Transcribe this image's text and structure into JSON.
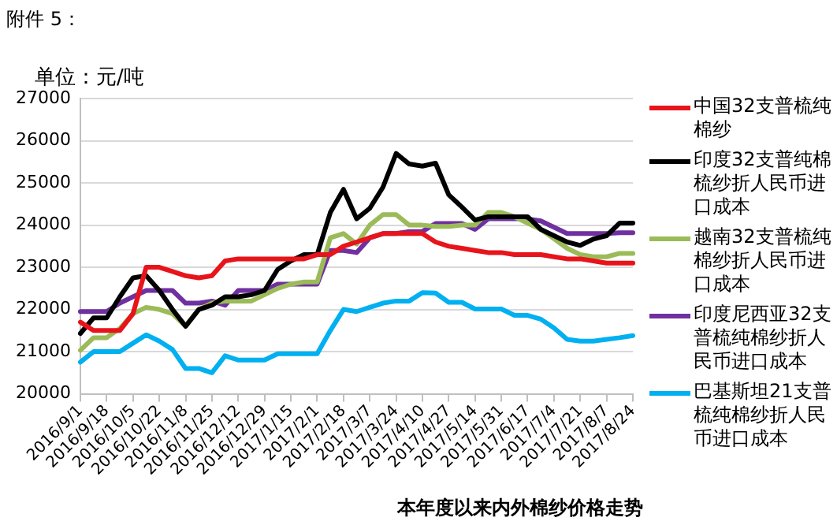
{
  "chart_data": {
    "type": "line",
    "title": "本年度以来内外棉纱价格走势",
    "ylabel": "单位：元/吨",
    "annotations": [
      "附件 5："
    ],
    "categories": [
      "2016/9/1",
      null,
      "2016/9/18",
      null,
      "2016/10/5",
      null,
      "2016/10/22",
      null,
      "2016/11/8",
      null,
      "2016/11/25",
      null,
      "2016/12/12",
      null,
      "2016/12/29",
      null,
      "2017/1/15",
      null,
      "2017/2/1",
      null,
      "2017/2/18",
      null,
      "2017/3/7",
      null,
      "2017/3/24",
      null,
      "2017/4/10",
      null,
      "2017/4/27",
      null,
      "2017/5/14",
      null,
      "2017/5/31",
      null,
      "2017/6/17",
      null,
      "2017/7/4",
      null,
      "2017/7/21",
      null,
      "2017/8/7",
      null,
      "2017/8/24"
    ],
    "series": [
      {
        "name": "中国32支普梳纯棉纱",
        "color": "#e8141b",
        "values": [
          21700,
          21500,
          21500,
          21500,
          21900,
          23000,
          23000,
          22900,
          22800,
          22750,
          22800,
          23150,
          23200,
          23200,
          23200,
          23200,
          23200,
          23200,
          23300,
          23300,
          23500,
          23600,
          23700,
          23800,
          23800,
          23800,
          23800,
          23600,
          23500,
          23450,
          23400,
          23350,
          23350,
          23300,
          23300,
          23300,
          23250,
          23200,
          23200,
          23150,
          23100,
          23100,
          23100
        ]
      },
      {
        "name": "印度32支普纯棉梳纱折人民币进口成本",
        "color": "#000000",
        "values": [
          21430,
          21800,
          21800,
          22300,
          22750,
          22800,
          22450,
          22000,
          21600,
          22000,
          22100,
          22300,
          22300,
          22350,
          22450,
          22950,
          23150,
          23300,
          23300,
          24300,
          24850,
          24150,
          24400,
          24900,
          25700,
          25450,
          25400,
          25470,
          24720,
          24430,
          24120,
          24200,
          24200,
          24200,
          24200,
          23900,
          23750,
          23600,
          23520,
          23670,
          23750,
          24050,
          24050
        ]
      },
      {
        "name": "越南32支普梳纯棉纱折人民币进口成本",
        "color": "#9bbb59",
        "values": [
          21030,
          21330,
          21330,
          21550,
          21900,
          22050,
          22000,
          21900,
          21600,
          22000,
          22150,
          22200,
          22200,
          22200,
          22350,
          22500,
          22600,
          22650,
          22650,
          23700,
          23800,
          23550,
          24000,
          24250,
          24250,
          24000,
          24000,
          23970,
          23970,
          24000,
          24000,
          24300,
          24300,
          24200,
          24050,
          23900,
          23680,
          23450,
          23300,
          23250,
          23250,
          23330,
          23330
        ]
      },
      {
        "name": "印度尼西亚32支普梳纯棉纱折人民币进口成本",
        "color": "#7030a0",
        "values": [
          21950,
          21950,
          21950,
          22150,
          22300,
          22450,
          22450,
          22450,
          22150,
          22150,
          22200,
          22100,
          22450,
          22450,
          22450,
          22600,
          22600,
          22600,
          22600,
          23400,
          23400,
          23350,
          23700,
          23800,
          23800,
          23850,
          23850,
          24040,
          24040,
          24040,
          23900,
          24150,
          24150,
          24150,
          24150,
          24100,
          23950,
          23800,
          23800,
          23800,
          23800,
          23820,
          23820
        ]
      },
      {
        "name": "巴基斯坦21支普梳纯棉纱折人民币进口成本",
        "color": "#00b0f0",
        "values": [
          20750,
          21000,
          21000,
          21000,
          21200,
          21400,
          21250,
          21050,
          20600,
          20600,
          20500,
          20900,
          20800,
          20800,
          20800,
          20950,
          20950,
          20950,
          20950,
          21500,
          22000,
          21950,
          22050,
          22150,
          22200,
          22200,
          22400,
          22390,
          22170,
          22170,
          22010,
          22010,
          22010,
          21860,
          21860,
          21770,
          21560,
          21290,
          21250,
          21250,
          21290,
          21330,
          21380
        ]
      }
    ],
    "ylim": [
      20000,
      27000
    ],
    "yticks": [
      20000,
      21000,
      22000,
      23000,
      24000,
      25000,
      26000,
      27000
    ],
    "grid": "y",
    "legend": "right",
    "marker": "none",
    "line_style": "solid"
  }
}
